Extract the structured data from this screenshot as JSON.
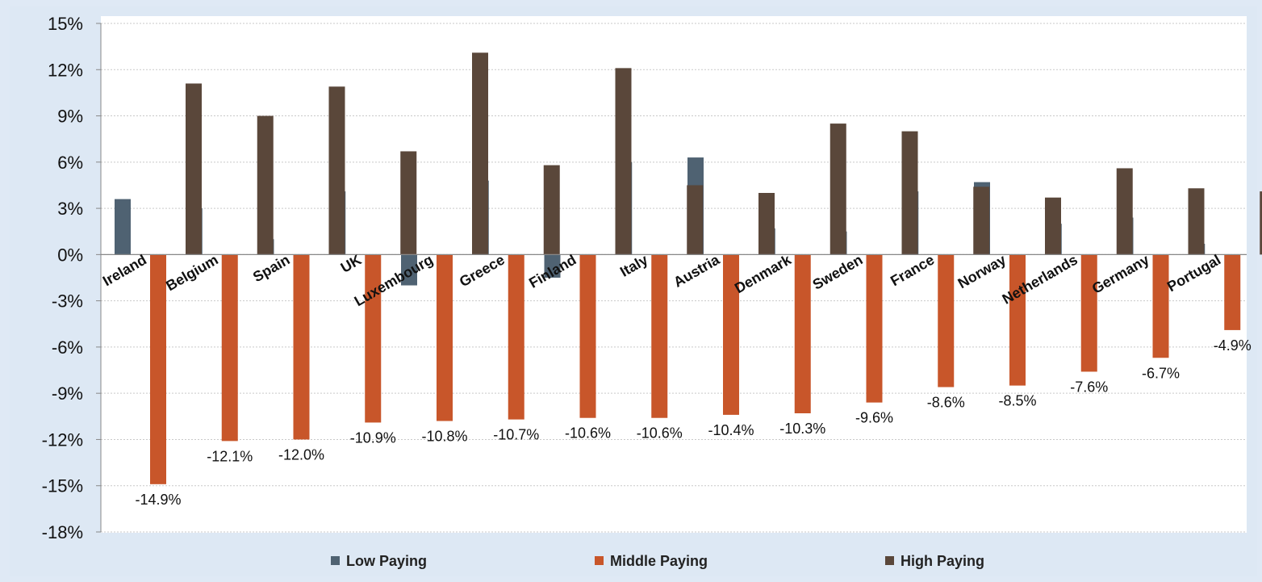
{
  "chart_data": {
    "type": "bar",
    "title": "",
    "xlabel": "",
    "ylabel": "",
    "ylim": [
      -18,
      15
    ],
    "yticks": [
      15,
      12,
      9,
      6,
      3,
      0,
      -3,
      -6,
      -9,
      -12,
      -15,
      -18
    ],
    "ytick_labels": [
      "15%",
      "12%",
      "9%",
      "6%",
      "3%",
      "0%",
      "-3%",
      "-6%",
      "-9%",
      "-12%",
      "-15%",
      "-18%"
    ],
    "grid": true,
    "legend_position": "bottom",
    "categories": [
      "Ireland",
      "Belgium",
      "Spain",
      "UK",
      "Luxembourg",
      "Greece",
      "Finland",
      "Italy",
      "Austria",
      "Denmark",
      "Sweden",
      "France",
      "Norway",
      "Netherlands",
      "Germany",
      "Portugal"
    ],
    "series": [
      {
        "name": "Low Paying",
        "color": "#4f6272",
        "values": [
          3.6,
          3.0,
          1.0,
          4.1,
          -2.0,
          4.8,
          -1.5,
          6.0,
          6.3,
          1.7,
          1.5,
          4.1,
          4.7,
          2.0,
          2.4,
          0.7
        ]
      },
      {
        "name": "Middle Paying",
        "color": "#c8562a",
        "values": [
          -14.9,
          -12.1,
          -12.0,
          -10.9,
          -10.8,
          -10.7,
          -10.6,
          -10.6,
          -10.4,
          -10.3,
          -9.6,
          -8.6,
          -8.5,
          -7.6,
          -6.7,
          -4.9
        ]
      },
      {
        "name": "High Paying",
        "color": "#5a473a",
        "values": [
          11.1,
          9.0,
          10.9,
          6.7,
          13.1,
          5.8,
          12.1,
          4.5,
          4.0,
          8.5,
          8.0,
          4.4,
          3.7,
          5.6,
          4.3,
          4.1
        ]
      }
    ],
    "data_labels": [
      "-14.9%",
      "-12.1%",
      "-12.0%",
      "-10.9%",
      "-10.8%",
      "-10.7%",
      "-10.6%",
      "-10.6%",
      "-10.4%",
      "-10.3%",
      "-9.6%",
      "-8.6%",
      "-8.5%",
      "-7.6%",
      "-6.7%",
      "-4.9%"
    ]
  }
}
